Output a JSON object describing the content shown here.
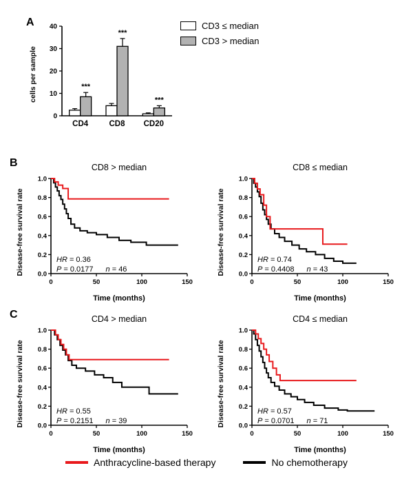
{
  "figure": {
    "panel_labels": {
      "a": "A",
      "b": "B",
      "c": "C"
    },
    "bottom_legend": [
      {
        "label": "Anthracycline-based therapy",
        "color": "#e8191c"
      },
      {
        "label": "No chemotherapy",
        "color": "#000000"
      }
    ]
  },
  "chart_data": [
    {
      "id": "panel-a-bars",
      "type": "bar",
      "title": "",
      "xlabel": "",
      "ylabel": "cells per sample",
      "ylim": [
        0,
        40
      ],
      "yticks": [
        0,
        10,
        20,
        30,
        40
      ],
      "categories": [
        "CD4",
        "CD8",
        "CD20"
      ],
      "legend_position": "top-right",
      "series": [
        {
          "name": "CD3 ≤ median",
          "color": "#ffffff",
          "values": [
            2.5,
            4.5,
            0.9
          ],
          "errors": [
            0.7,
            1.0,
            0.4
          ]
        },
        {
          "name": "CD3 > median",
          "color": "#b2b2b2",
          "values": [
            8.5,
            31,
            3.5
          ],
          "errors": [
            1.9,
            3.5,
            1.0
          ],
          "significance": [
            "***",
            "***",
            "***"
          ]
        }
      ]
    },
    {
      "id": "panel-b-left",
      "type": "line",
      "subtype": "km-step",
      "title": "CD8 > median",
      "xlabel": "Time (months)",
      "ylabel": "Disease-free survival rate",
      "xlim": [
        0,
        150
      ],
      "ylim": [
        0,
        1
      ],
      "xticks": [
        0,
        50,
        100,
        150
      ],
      "yticks": [
        0,
        0.2,
        0.4,
        0.6,
        0.8,
        1
      ],
      "annotations": {
        "hr_label": "HR",
        "hr_value": " = 0.36",
        "p_label": "P",
        "p_value": " = 0.0177",
        "n_label": "n",
        "n_value": " = 46"
      },
      "series": [
        {
          "name": "Anthracycline-based therapy",
          "color": "#e8191c",
          "points": [
            [
              0,
              1.0
            ],
            [
              4,
              0.965
            ],
            [
              8,
              0.93
            ],
            [
              13,
              0.895
            ],
            [
              19,
              0.785
            ],
            [
              130,
              0.785
            ]
          ]
        },
        {
          "name": "No chemotherapy",
          "color": "#000000",
          "points": [
            [
              0,
              1.0
            ],
            [
              3,
              0.955
            ],
            [
              5,
              0.91
            ],
            [
              7,
              0.87
            ],
            [
              9,
              0.82
            ],
            [
              11,
              0.78
            ],
            [
              13,
              0.73
            ],
            [
              15,
              0.68
            ],
            [
              17,
              0.63
            ],
            [
              19,
              0.58
            ],
            [
              22,
              0.52
            ],
            [
              26,
              0.48
            ],
            [
              32,
              0.45
            ],
            [
              40,
              0.43
            ],
            [
              50,
              0.41
            ],
            [
              62,
              0.38
            ],
            [
              75,
              0.35
            ],
            [
              88,
              0.33
            ],
            [
              105,
              0.3
            ],
            [
              140,
              0.3
            ]
          ]
        }
      ]
    },
    {
      "id": "panel-b-right",
      "type": "line",
      "subtype": "km-step",
      "title": "CD8 ≤ median",
      "xlabel": "Time (months)",
      "ylabel": "Disease-free survival rate",
      "xlim": [
        0,
        150
      ],
      "ylim": [
        0,
        1
      ],
      "xticks": [
        0,
        50,
        100,
        150
      ],
      "yticks": [
        0,
        0.2,
        0.4,
        0.6,
        0.8,
        1
      ],
      "annotations": {
        "hr_label": "HR",
        "hr_value": " = 0.74",
        "p_label": "P",
        "p_value": " = 0.4408",
        "n_label": "n",
        "n_value": " = 43"
      },
      "series": [
        {
          "name": "Anthracycline-based therapy",
          "color": "#e8191c",
          "points": [
            [
              0,
              1.0
            ],
            [
              3,
              0.95
            ],
            [
              6,
              0.89
            ],
            [
              9,
              0.83
            ],
            [
              13,
              0.72
            ],
            [
              16,
              0.6
            ],
            [
              20,
              0.47
            ],
            [
              75,
              0.47
            ],
            [
              78,
              0.31
            ],
            [
              105,
              0.31
            ]
          ]
        },
        {
          "name": "No chemotherapy",
          "color": "#000000",
          "points": [
            [
              0,
              1.0
            ],
            [
              2,
              0.95
            ],
            [
              4,
              0.91
            ],
            [
              6,
              0.86
            ],
            [
              8,
              0.81
            ],
            [
              10,
              0.74
            ],
            [
              12,
              0.67
            ],
            [
              14,
              0.62
            ],
            [
              16,
              0.57
            ],
            [
              18,
              0.52
            ],
            [
              21,
              0.47
            ],
            [
              25,
              0.42
            ],
            [
              30,
              0.38
            ],
            [
              36,
              0.34
            ],
            [
              44,
              0.3
            ],
            [
              52,
              0.26
            ],
            [
              60,
              0.23
            ],
            [
              70,
              0.2
            ],
            [
              80,
              0.16
            ],
            [
              90,
              0.13
            ],
            [
              100,
              0.11
            ],
            [
              115,
              0.11
            ]
          ]
        }
      ]
    },
    {
      "id": "panel-c-left",
      "type": "line",
      "subtype": "km-step",
      "title": "CD4 > median",
      "xlabel": "Time (months)",
      "ylabel": "Disease-free survival rate",
      "xlim": [
        0,
        150
      ],
      "ylim": [
        0,
        1
      ],
      "xticks": [
        0,
        50,
        100,
        150
      ],
      "yticks": [
        0,
        0.2,
        0.4,
        0.6,
        0.8,
        1
      ],
      "annotations": {
        "hr_label": "HR",
        "hr_value": " = 0.55",
        "p_label": "P",
        "p_value": " = 0.2151",
        "n_label": "n",
        "n_value": " = 39"
      },
      "series": [
        {
          "name": "Anthracycline-based therapy",
          "color": "#e8191c",
          "points": [
            [
              0,
              1.0
            ],
            [
              5,
              0.95
            ],
            [
              8,
              0.9
            ],
            [
              11,
              0.85
            ],
            [
              14,
              0.8
            ],
            [
              17,
              0.74
            ],
            [
              20,
              0.69
            ],
            [
              130,
              0.69
            ]
          ]
        },
        {
          "name": "No chemotherapy",
          "color": "#000000",
          "points": [
            [
              0,
              1.0
            ],
            [
              4,
              0.95
            ],
            [
              7,
              0.9
            ],
            [
              10,
              0.84
            ],
            [
              13,
              0.79
            ],
            [
              16,
              0.74
            ],
            [
              19,
              0.68
            ],
            [
              23,
              0.63
            ],
            [
              28,
              0.6
            ],
            [
              38,
              0.57
            ],
            [
              48,
              0.53
            ],
            [
              58,
              0.5
            ],
            [
              68,
              0.45
            ],
            [
              78,
              0.4
            ],
            [
              108,
              0.33
            ],
            [
              140,
              0.33
            ]
          ]
        }
      ]
    },
    {
      "id": "panel-c-right",
      "type": "line",
      "subtype": "km-step",
      "title": "CD4 ≤ median",
      "xlabel": "Time (months)",
      "ylabel": "Disease-free survival rate",
      "xlim": [
        0,
        150
      ],
      "ylim": [
        0,
        1
      ],
      "xticks": [
        0,
        50,
        100,
        150
      ],
      "yticks": [
        0,
        0.2,
        0.4,
        0.6,
        0.8,
        1
      ],
      "annotations": {
        "hr_label": "HR",
        "hr_value": " = 0.57",
        "p_label": "P",
        "p_value": " = 0.0701",
        "n_label": "n",
        "n_value": " = 71"
      },
      "series": [
        {
          "name": "Anthracycline-based therapy",
          "color": "#e8191c",
          "points": [
            [
              0,
              1.0
            ],
            [
              4,
              0.96
            ],
            [
              7,
              0.91
            ],
            [
              10,
              0.86
            ],
            [
              13,
              0.8
            ],
            [
              16,
              0.74
            ],
            [
              19,
              0.67
            ],
            [
              23,
              0.6
            ],
            [
              27,
              0.53
            ],
            [
              31,
              0.47
            ],
            [
              115,
              0.47
            ]
          ]
        },
        {
          "name": "No chemotherapy",
          "color": "#000000",
          "points": [
            [
              0,
              1.0
            ],
            [
              2,
              0.96
            ],
            [
              4,
              0.9
            ],
            [
              6,
              0.84
            ],
            [
              8,
              0.78
            ],
            [
              10,
              0.72
            ],
            [
              12,
              0.66
            ],
            [
              14,
              0.6
            ],
            [
              16,
              0.55
            ],
            [
              18,
              0.5
            ],
            [
              21,
              0.45
            ],
            [
              25,
              0.41
            ],
            [
              30,
              0.37
            ],
            [
              36,
              0.33
            ],
            [
              43,
              0.3
            ],
            [
              50,
              0.27
            ],
            [
              58,
              0.24
            ],
            [
              68,
              0.21
            ],
            [
              80,
              0.18
            ],
            [
              95,
              0.16
            ],
            [
              105,
              0.15
            ],
            [
              135,
              0.15
            ]
          ]
        }
      ]
    }
  ]
}
